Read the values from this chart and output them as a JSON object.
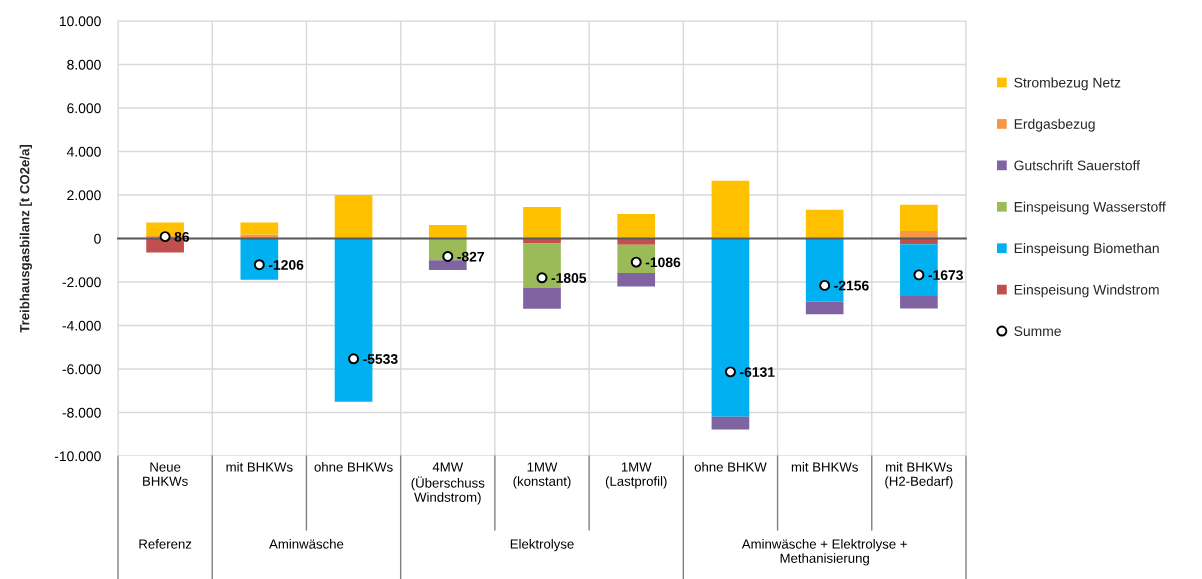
{
  "chart_data": {
    "type": "bar",
    "stacked": true,
    "ylabel": "Treibhausgasbilanz [t CO2e/a]",
    "categories": [
      "Neue\nBHKWs",
      "mit BHKWs",
      "ohne BHKWs",
      "4MW\n(Überschuss\nWindstrom)",
      "1MW\n(konstant)",
      "1MW\n(Lastprofil)",
      "ohne BHKW",
      "mit BHKWs",
      "mit BHKWs\n(H2-Bedarf)"
    ],
    "series": [
      {
        "name": "Einspeisung Windstrom",
        "color": "#c0504d",
        "values": [
          -640,
          null,
          null,
          null,
          -230,
          -290,
          null,
          null,
          -260
        ]
      },
      {
        "name": "Einspeisung Biomethan",
        "color": "#00b0f0",
        "values": [
          null,
          -1900,
          -7500,
          null,
          null,
          null,
          -8200,
          -2900,
          -2380
        ]
      },
      {
        "name": "Einspeisung Wasserstoff",
        "color": "#9bbb59",
        "values": [
          null,
          null,
          null,
          -1000,
          -2050,
          -1300,
          null,
          null,
          null
        ]
      },
      {
        "name": "Gutschrift Sauerstoff",
        "color": "#8064a2",
        "values": [
          null,
          null,
          null,
          -450,
          -950,
          -620,
          -580,
          -580,
          -580
        ]
      },
      {
        "name": "Erdgasbezug",
        "color": "#f79646",
        "values": [
          150,
          180,
          null,
          null,
          null,
          null,
          null,
          null,
          350
        ]
      },
      {
        "name": "Strombezug Netz",
        "color": "#ffc000",
        "values": [
          580,
          550,
          2000,
          620,
          1450,
          1130,
          2650,
          1320,
          1200
        ]
      },
      {
        "name": "Summe",
        "type": "scatter",
        "marker": "circle",
        "color": "#ffffff",
        "values": [
          86,
          -1206,
          -5533,
          -827,
          -1805,
          -1086,
          -6131,
          -2156,
          -1673
        ],
        "value_labels": [
          "86",
          "-1206",
          "-5533",
          "-827",
          "-1805",
          "-1086",
          "-6131",
          "-2156",
          "-1673"
        ]
      }
    ],
    "ylim": [
      -10000,
      10000
    ],
    "yticks": [
      {
        "value": -10000,
        "label": "-10.000"
      },
      {
        "value": -8000,
        "label": "-8.000"
      },
      {
        "value": -6000,
        "label": "-6.000"
      },
      {
        "value": -4000,
        "label": "-4.000"
      },
      {
        "value": -2000,
        "label": "-2.000"
      },
      0,
      {
        "value": 2000,
        "label": "2.000"
      },
      {
        "value": 4000,
        "label": "4.000"
      },
      {
        "value": 6000,
        "label": "6.000"
      },
      {
        "value": 8000,
        "label": "8.000"
      },
      {
        "value": 10000,
        "label": "10.000"
      }
    ],
    "grid": true,
    "legend": "right",
    "annotations": [
      "Referenz",
      "Aminwäsche",
      "Elektrolyse",
      "Aminwäsche + Elektrolyse +\nMethanisierung"
    ]
  }
}
